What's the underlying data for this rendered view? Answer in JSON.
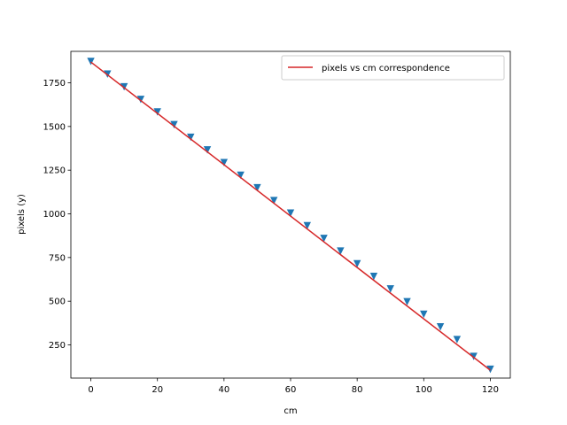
{
  "chart_data": {
    "type": "line",
    "title": "",
    "xlabel": "cm",
    "ylabel": "pixels (y)",
    "xlim": [
      -6,
      126
    ],
    "ylim": [
      60,
      1930
    ],
    "xticks": [
      0,
      20,
      40,
      60,
      80,
      100,
      120
    ],
    "yticks": [
      250,
      500,
      750,
      1000,
      1250,
      1500,
      1750
    ],
    "grid": false,
    "legend_position": "top-right",
    "colors": {
      "markers": "#1f77b4",
      "line": "#d62728"
    },
    "series": [
      {
        "kind": "scatter",
        "marker": "triangle-down",
        "x": [
          0,
          5,
          10,
          15,
          20,
          25,
          30,
          35,
          40,
          45,
          50,
          55,
          60,
          65,
          70,
          75,
          80,
          85,
          90,
          95,
          100,
          105,
          110,
          115,
          120
        ],
        "y": [
          1872,
          1800,
          1727,
          1655,
          1583,
          1510,
          1438,
          1366,
          1293,
          1221,
          1149,
          1076,
          1004,
          932,
          859,
          787,
          714,
          642,
          570,
          497,
          425,
          353,
          280,
          184,
          110
        ]
      },
      {
        "kind": "line",
        "name": "pixels vs cm correspondence",
        "x": [
          0,
          120
        ],
        "y": [
          1869,
          105
        ]
      }
    ]
  }
}
